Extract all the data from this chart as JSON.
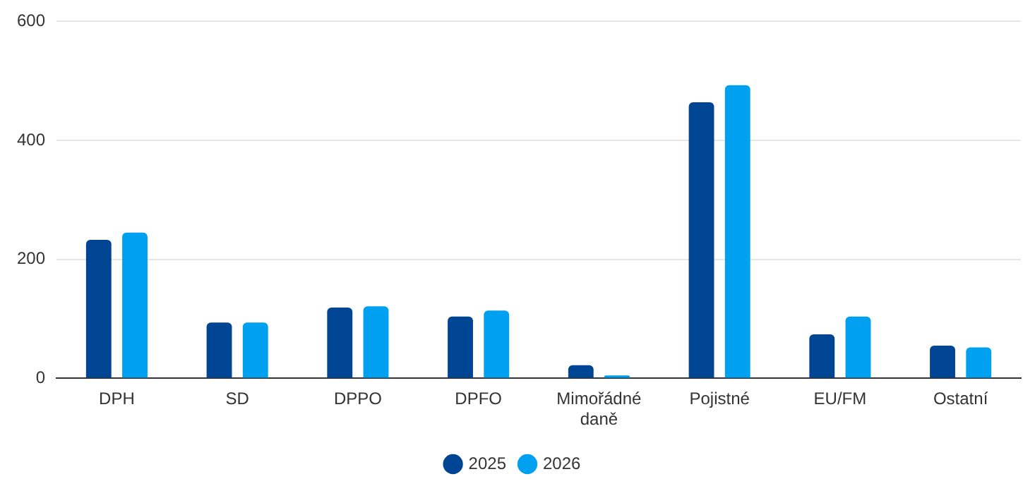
{
  "chart_data": {
    "type": "bar",
    "categories": [
      "DPH",
      "SD",
      "DPPO",
      "DPFO",
      "Mimořádné daně",
      "Pojistné",
      "EU/FM",
      "Ostatní"
    ],
    "series": [
      {
        "name": "2025",
        "color": "#004494",
        "values": [
          233,
          94,
          119,
          104,
          22,
          464,
          74,
          55
        ]
      },
      {
        "name": "2026",
        "color": "#00a0f0",
        "values": [
          245,
          94,
          121,
          114,
          5,
          493,
          104,
          52
        ]
      }
    ],
    "ylim": [
      0,
      600
    ],
    "yticks": [
      0,
      200,
      400,
      600
    ],
    "grid": "y",
    "legend": "bottom"
  }
}
